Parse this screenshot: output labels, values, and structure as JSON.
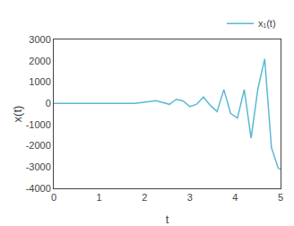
{
  "chart_data": {
    "type": "line",
    "xlabel": "t",
    "ylabel": "x(t)",
    "x": [
      0.0,
      0.3,
      0.6,
      0.9,
      1.2,
      1.5,
      1.8,
      2.1,
      2.25,
      2.4,
      2.55,
      2.7,
      2.85,
      3.0,
      3.15,
      3.3,
      3.45,
      3.6,
      3.75,
      3.9,
      4.05,
      4.2,
      4.35,
      4.5,
      4.65,
      4.8,
      4.95,
      5.0
    ],
    "series": [
      {
        "name": "x₁(t)",
        "color": "#5bb8d4",
        "values": [
          0.0,
          0.0,
          0.0,
          0.0,
          0.0,
          0.0,
          -5.0,
          80.0,
          120.0,
          40.0,
          -50.0,
          185.0,
          110.0,
          -160.0,
          -45.0,
          295.0,
          -95.0,
          -390.0,
          645.0,
          -480.0,
          -690.0,
          645.0,
          -1640.0,
          670.0,
          2090.0,
          -2090.0,
          -3060.0,
          -3100.0
        ]
      }
    ],
    "xlim": [
      0,
      5
    ],
    "xticks": [
      0,
      1,
      2,
      3,
      4,
      5
    ],
    "ylim": [
      -4000,
      3000
    ],
    "yticks": [
      -4000,
      -3000,
      -2000,
      -1000,
      0,
      1000,
      2000,
      3000
    ],
    "grid": false,
    "legend": "upper right"
  }
}
